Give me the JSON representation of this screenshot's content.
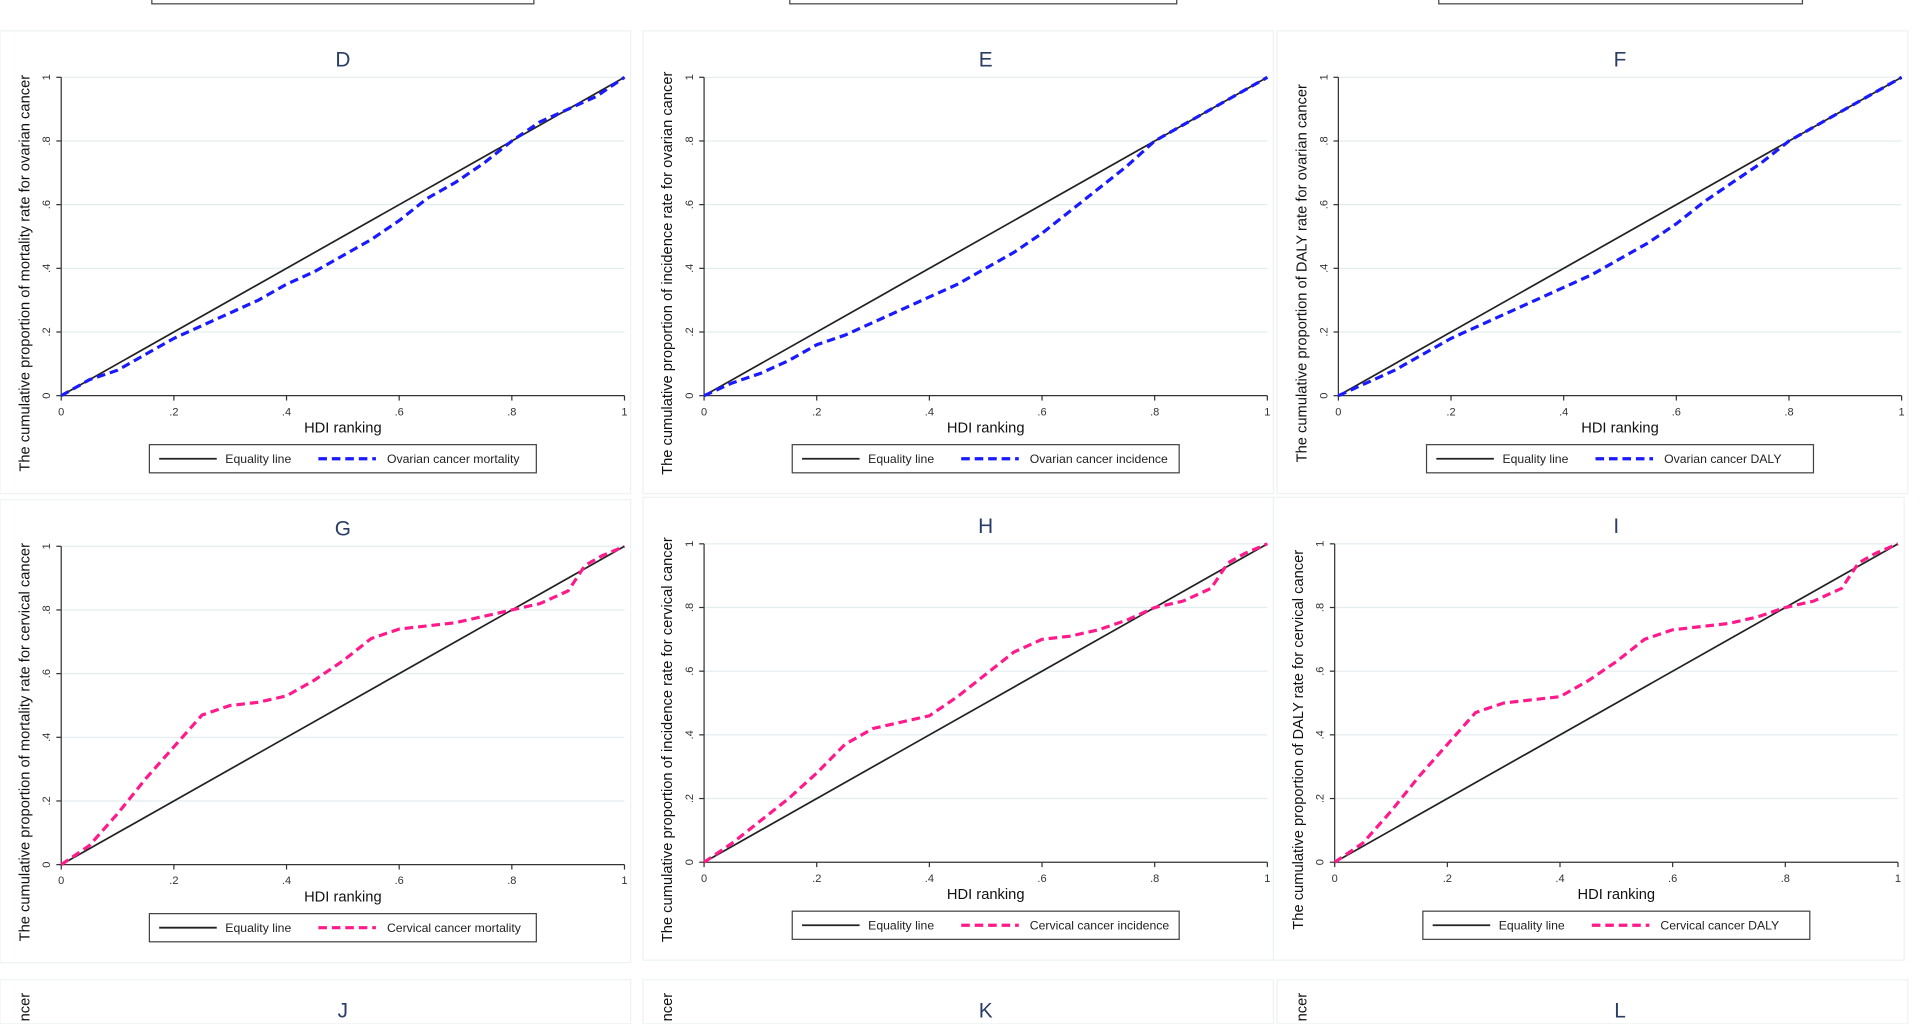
{
  "colors": {
    "equality": "#222222",
    "ovarian": "#1a1aff",
    "cervical": "#ff1a8c",
    "grid": "#e3ecef"
  },
  "chart_data": [
    {
      "id": "D",
      "type": "line",
      "title": "D",
      "xlabel": "HDI ranking",
      "ylabel": "The cumulative proportion of mortality rate for ovarian cancer",
      "xlim": [
        0,
        1
      ],
      "ylim": [
        0,
        1
      ],
      "xticks": [
        "0",
        ".2",
        ".4",
        ".6",
        ".8",
        "1"
      ],
      "yticks": [
        "0",
        ".2",
        ".4",
        ".6",
        ".8",
        "1"
      ],
      "grid": true,
      "legend": "bottom",
      "series": [
        {
          "name": "Equality line",
          "style": "solid",
          "x": [
            0,
            1
          ],
          "y": [
            0,
            1
          ]
        },
        {
          "name": "Ovarian cancer mortality",
          "style": "dashed",
          "color": "ovarian",
          "x": [
            0,
            0.05,
            0.1,
            0.15,
            0.2,
            0.25,
            0.3,
            0.35,
            0.4,
            0.45,
            0.5,
            0.55,
            0.6,
            0.65,
            0.7,
            0.75,
            0.8,
            0.85,
            0.9,
            0.95,
            1
          ],
          "y": [
            0,
            0.05,
            0.08,
            0.13,
            0.18,
            0.22,
            0.26,
            0.3,
            0.35,
            0.39,
            0.44,
            0.49,
            0.55,
            0.62,
            0.67,
            0.73,
            0.8,
            0.86,
            0.9,
            0.94,
            1
          ]
        }
      ]
    },
    {
      "id": "E",
      "type": "line",
      "title": "E",
      "xlabel": "HDI ranking",
      "ylabel": "The cumulative proportion of incidence rate for ovarian cancer",
      "xlim": [
        0,
        1
      ],
      "ylim": [
        0,
        1
      ],
      "xticks": [
        "0",
        ".2",
        ".4",
        ".6",
        ".8",
        "1"
      ],
      "yticks": [
        "0",
        ".2",
        ".4",
        ".6",
        ".8",
        "1"
      ],
      "grid": true,
      "legend": "bottom",
      "series": [
        {
          "name": "Equality line",
          "style": "solid",
          "x": [
            0,
            1
          ],
          "y": [
            0,
            1
          ]
        },
        {
          "name": "Ovarian cancer incidence",
          "style": "dashed",
          "color": "ovarian",
          "x": [
            0,
            0.05,
            0.1,
            0.15,
            0.2,
            0.25,
            0.3,
            0.35,
            0.4,
            0.45,
            0.5,
            0.55,
            0.6,
            0.65,
            0.7,
            0.75,
            0.8,
            0.85,
            0.9,
            0.95,
            1
          ],
          "y": [
            0,
            0.04,
            0.07,
            0.11,
            0.16,
            0.19,
            0.23,
            0.27,
            0.31,
            0.35,
            0.4,
            0.45,
            0.51,
            0.58,
            0.65,
            0.72,
            0.8,
            0.85,
            0.9,
            0.95,
            1
          ]
        }
      ]
    },
    {
      "id": "F",
      "type": "line",
      "title": "F",
      "xlabel": "HDI ranking",
      "ylabel": "The cumulative proportion of DALY rate for ovarian cancer",
      "xlim": [
        0,
        1
      ],
      "ylim": [
        0,
        1
      ],
      "xticks": [
        "0",
        ".2",
        ".4",
        ".6",
        ".8",
        "1"
      ],
      "yticks": [
        "0",
        ".2",
        ".4",
        ".6",
        ".8",
        "1"
      ],
      "grid": true,
      "legend": "bottom",
      "series": [
        {
          "name": "Equality line",
          "style": "solid",
          "x": [
            0,
            1
          ],
          "y": [
            0,
            1
          ]
        },
        {
          "name": "Ovarian cancer DALY",
          "style": "dashed",
          "color": "ovarian",
          "x": [
            0,
            0.05,
            0.1,
            0.15,
            0.2,
            0.25,
            0.3,
            0.35,
            0.4,
            0.45,
            0.5,
            0.55,
            0.6,
            0.65,
            0.7,
            0.75,
            0.8,
            0.85,
            0.9,
            0.95,
            1
          ],
          "y": [
            0,
            0.04,
            0.08,
            0.13,
            0.18,
            0.22,
            0.26,
            0.3,
            0.34,
            0.38,
            0.43,
            0.48,
            0.54,
            0.61,
            0.67,
            0.73,
            0.8,
            0.85,
            0.9,
            0.95,
            1
          ]
        }
      ]
    },
    {
      "id": "G",
      "type": "line",
      "title": "G",
      "xlabel": "HDI ranking",
      "ylabel": "The cumulative proportion of mortality rate for cervical cancer",
      "xlim": [
        0,
        1
      ],
      "ylim": [
        0,
        1
      ],
      "xticks": [
        "0",
        ".2",
        ".4",
        ".6",
        ".8",
        "1"
      ],
      "yticks": [
        "0",
        ".2",
        ".4",
        ".6",
        ".8",
        "1"
      ],
      "grid": true,
      "legend": "bottom",
      "series": [
        {
          "name": "Equality line",
          "style": "solid",
          "x": [
            0,
            1
          ],
          "y": [
            0,
            1
          ]
        },
        {
          "name": "Cervical cancer mortality",
          "style": "dashed",
          "color": "cervical",
          "x": [
            0,
            0.05,
            0.1,
            0.15,
            0.2,
            0.25,
            0.3,
            0.35,
            0.4,
            0.45,
            0.5,
            0.55,
            0.6,
            0.65,
            0.7,
            0.75,
            0.8,
            0.85,
            0.9,
            0.93,
            0.96,
            1
          ],
          "y": [
            0,
            0.06,
            0.16,
            0.27,
            0.37,
            0.47,
            0.5,
            0.51,
            0.53,
            0.58,
            0.64,
            0.71,
            0.74,
            0.75,
            0.76,
            0.78,
            0.8,
            0.82,
            0.86,
            0.94,
            0.97,
            1
          ]
        }
      ]
    },
    {
      "id": "H",
      "type": "line",
      "title": "H",
      "xlabel": "HDI ranking",
      "ylabel": "The cumulative proportion of incidence rate for cervical cancer",
      "xlim": [
        0,
        1
      ],
      "ylim": [
        0,
        1
      ],
      "xticks": [
        "0",
        ".2",
        ".4",
        ".6",
        ".8",
        "1"
      ],
      "yticks": [
        "0",
        ".2",
        ".4",
        ".6",
        ".8",
        "1"
      ],
      "grid": true,
      "legend": "bottom",
      "series": [
        {
          "name": "Equality line",
          "style": "solid",
          "x": [
            0,
            1
          ],
          "y": [
            0,
            1
          ]
        },
        {
          "name": "Cervical cancer incidence",
          "style": "dashed",
          "color": "cervical",
          "x": [
            0,
            0.05,
            0.1,
            0.15,
            0.2,
            0.25,
            0.3,
            0.35,
            0.4,
            0.45,
            0.5,
            0.55,
            0.6,
            0.65,
            0.7,
            0.75,
            0.8,
            0.85,
            0.9,
            0.93,
            0.96,
            1
          ],
          "y": [
            0,
            0.06,
            0.13,
            0.2,
            0.28,
            0.37,
            0.42,
            0.44,
            0.46,
            0.52,
            0.59,
            0.66,
            0.7,
            0.71,
            0.73,
            0.76,
            0.8,
            0.82,
            0.86,
            0.94,
            0.97,
            1
          ]
        }
      ]
    },
    {
      "id": "I",
      "type": "line",
      "title": "I",
      "xlabel": "HDI ranking",
      "ylabel": "The cumulative proportion of DALY rate for cervical cancer",
      "xlim": [
        0,
        1
      ],
      "ylim": [
        0,
        1
      ],
      "xticks": [
        "0",
        ".2",
        ".4",
        ".6",
        ".8",
        "1"
      ],
      "yticks": [
        "0",
        ".2",
        ".4",
        ".6",
        ".8",
        "1"
      ],
      "grid": true,
      "legend": "bottom",
      "series": [
        {
          "name": "Equality line",
          "style": "solid",
          "x": [
            0,
            1
          ],
          "y": [
            0,
            1
          ]
        },
        {
          "name": "Cervical cancer DALY",
          "style": "dashed",
          "color": "cervical",
          "x": [
            0,
            0.05,
            0.1,
            0.15,
            0.2,
            0.25,
            0.3,
            0.35,
            0.4,
            0.45,
            0.5,
            0.55,
            0.6,
            0.65,
            0.7,
            0.75,
            0.8,
            0.85,
            0.9,
            0.93,
            0.96,
            1
          ],
          "y": [
            0,
            0.06,
            0.16,
            0.27,
            0.37,
            0.47,
            0.5,
            0.51,
            0.52,
            0.57,
            0.63,
            0.7,
            0.73,
            0.74,
            0.75,
            0.77,
            0.8,
            0.82,
            0.86,
            0.94,
            0.97,
            1
          ]
        }
      ]
    }
  ],
  "partial_panels": [
    {
      "title": "J",
      "ylabel_fragment": "ncer"
    },
    {
      "title": "K",
      "ylabel_fragment": "ncer"
    },
    {
      "title": "L",
      "ylabel_fragment": "ncer"
    }
  ]
}
